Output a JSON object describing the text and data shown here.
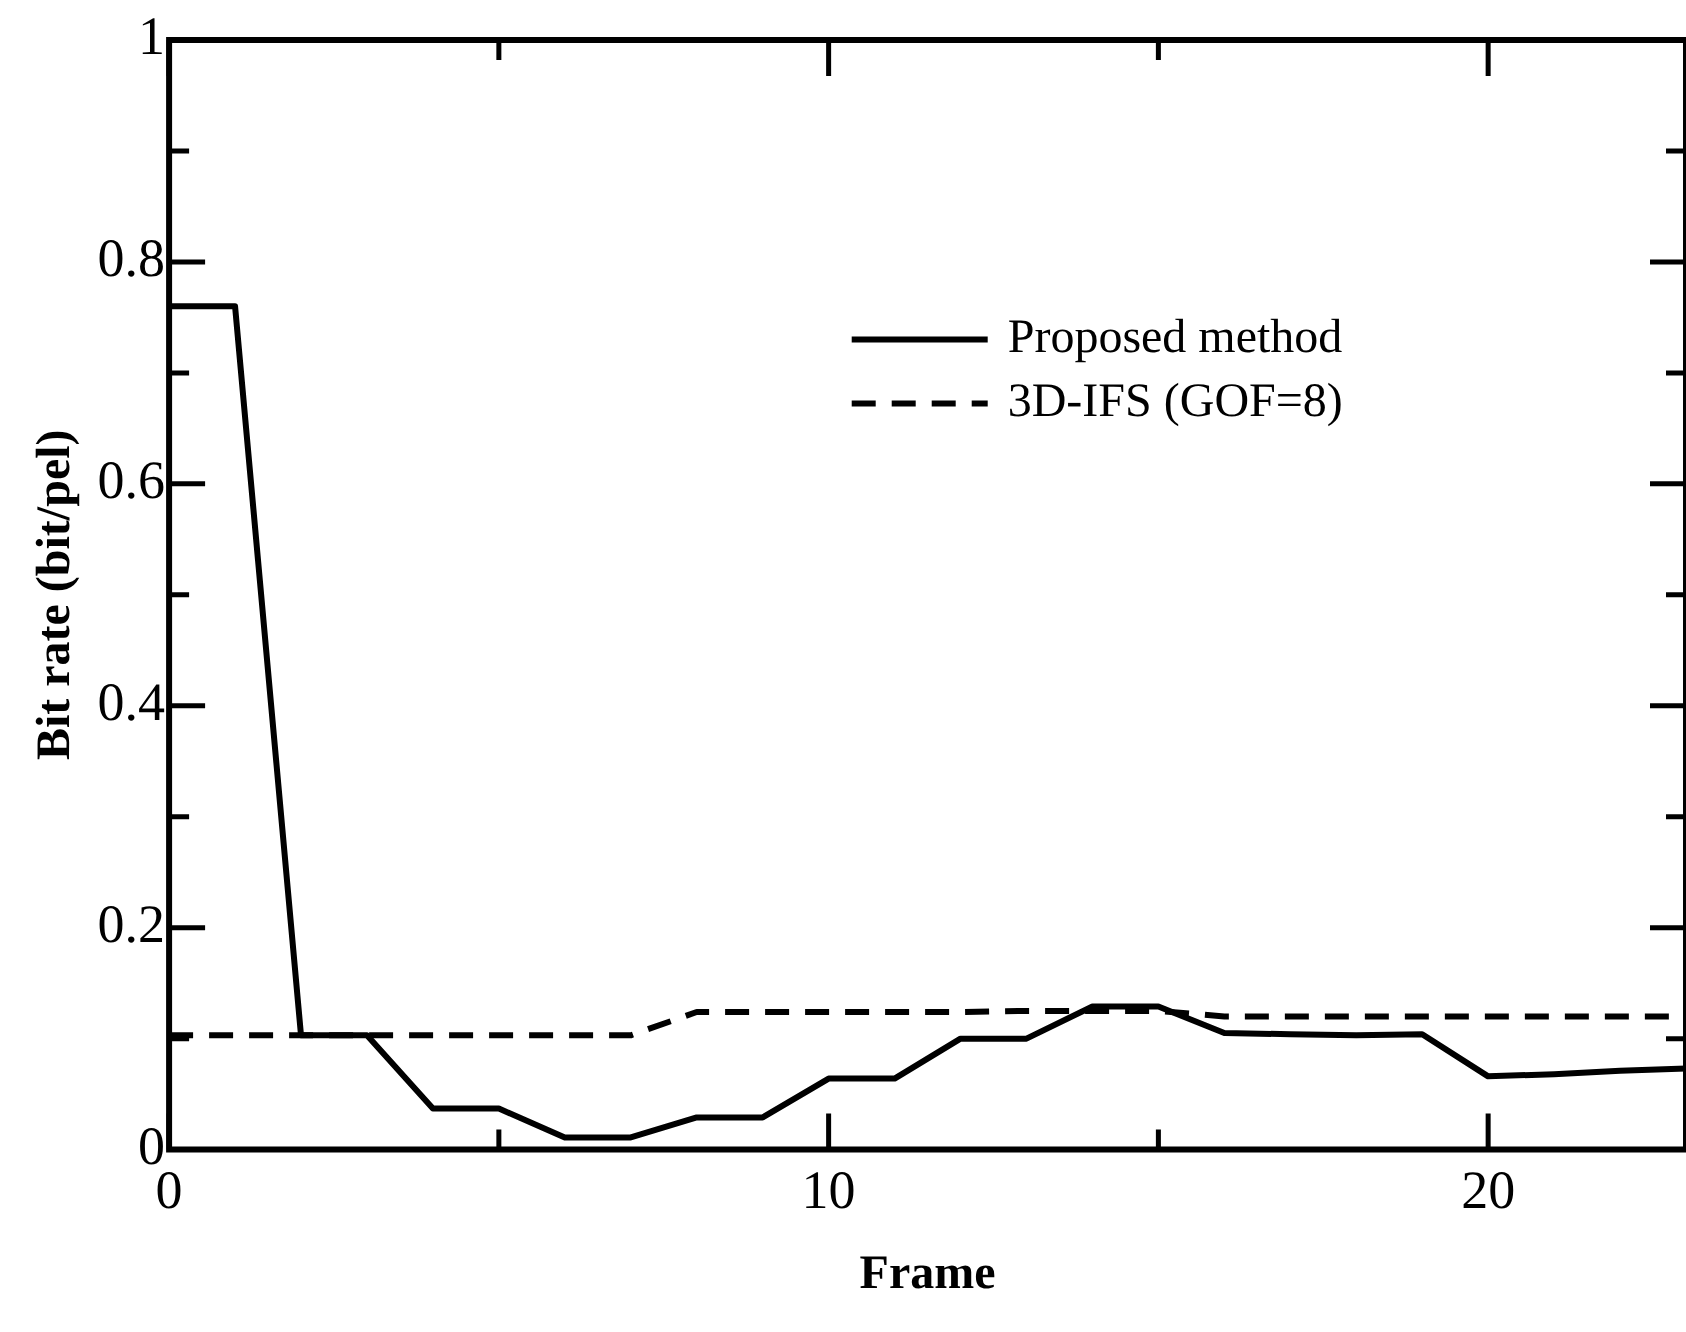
{
  "chart_data": {
    "type": "line",
    "xlabel": "Frame",
    "ylabel": "Bit rate (bit/pel)",
    "x": [
      0,
      1,
      2,
      3,
      4,
      5,
      6,
      7,
      8,
      9,
      10,
      11,
      12,
      13,
      14,
      15,
      16,
      17,
      18,
      19,
      20,
      21,
      22,
      23
    ],
    "series": [
      {
        "name": "Proposed method",
        "color": "#000000",
        "line_style": "solid",
        "values": [
          0.76,
          0.76,
          0.103,
          0.103,
          0.037,
          0.037,
          0.011,
          0.011,
          0.029,
          0.029,
          0.064,
          0.064,
          0.1,
          0.1,
          0.129,
          0.129,
          0.105,
          0.104,
          0.103,
          0.104,
          0.066,
          0.068,
          0.071,
          0.073
        ]
      },
      {
        "name": "3D-IFS (GOF=8)",
        "color": "#000000",
        "line_style": "dashed",
        "values": [
          0.103,
          0.103,
          0.103,
          0.103,
          0.103,
          0.103,
          0.103,
          0.103,
          0.124,
          0.124,
          0.124,
          0.124,
          0.124,
          0.125,
          0.125,
          0.125,
          0.12,
          0.12,
          0.12,
          0.12,
          0.12,
          0.12,
          0.12,
          0.12
        ]
      }
    ],
    "xlim": [
      0,
      23
    ],
    "xticks": [
      0,
      {
        "value": 5,
        "label": null
      },
      10,
      {
        "value": 15,
        "label": null
      },
      20
    ],
    "ylim": [
      0,
      1
    ],
    "yticks": [
      0,
      {
        "value": 0.1,
        "label": null
      },
      0.2,
      {
        "value": 0.3,
        "label": null
      },
      0.4,
      {
        "value": 0.5,
        "label": null
      },
      0.6,
      {
        "value": 0.7,
        "label": null
      },
      0.8,
      {
        "value": 0.9,
        "label": null
      },
      1
    ],
    "grid": false,
    "legend": "top right",
    "marker": "none"
  }
}
